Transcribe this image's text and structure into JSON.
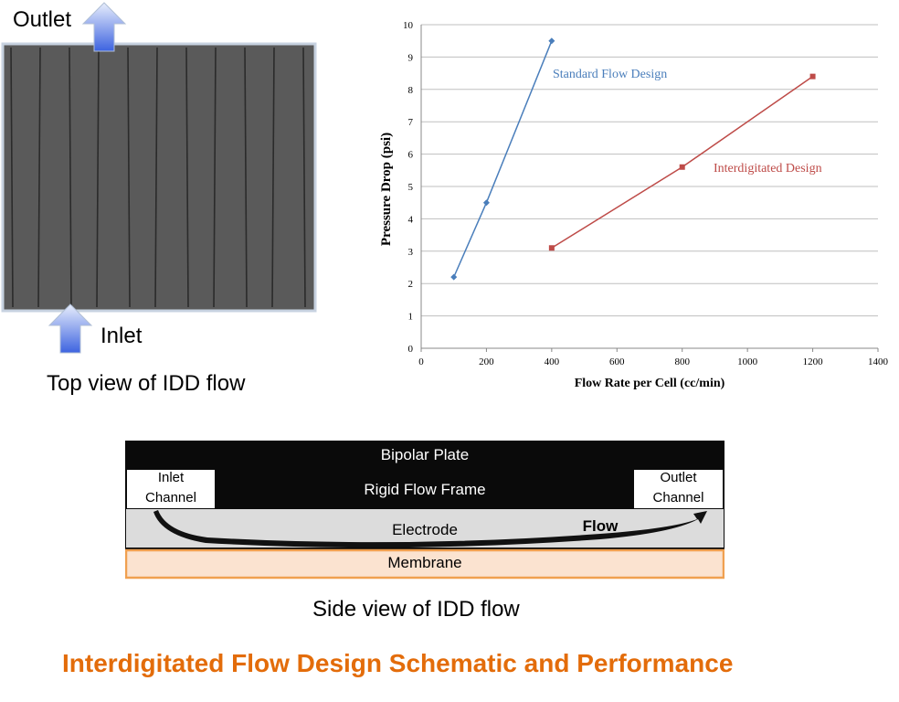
{
  "top_view": {
    "outlet_label": "Outlet",
    "inlet_label": "Inlet",
    "caption": "Top view of IDD flow"
  },
  "side_view": {
    "bipolar_plate": "Bipolar Plate",
    "rigid_flow_frame": "Rigid Flow Frame",
    "inlet_channel_line1": "Inlet",
    "inlet_channel_line2": "Channel",
    "outlet_channel_line1": "Outlet",
    "outlet_channel_line2": "Channel",
    "electrode": "Electrode",
    "flow": "Flow",
    "membrane": "Membrane",
    "caption": "Side view of IDD flow"
  },
  "main_title": "Interdigitated Flow Design Schematic and Performance",
  "colors": {
    "title": "#e36c0a",
    "standard_series": "#4a7ebb",
    "interdigitated_series": "#be4b48",
    "membrane_fill": "#fbe3d0",
    "membrane_border": "#f0a050",
    "electrode_fill": "#dcdcdc",
    "plate_fill": "#0a0a0a",
    "arrow_fill": "#5b7de6"
  },
  "chart_data": {
    "type": "line",
    "xlabel": "Flow Rate per Cell (cc/min)",
    "ylabel": "Pressure Drop (psi)",
    "xlim": [
      0,
      1400
    ],
    "ylim": [
      0,
      10
    ],
    "xticks": [
      0,
      200,
      400,
      600,
      800,
      1000,
      1200,
      1400
    ],
    "yticks": [
      0,
      1,
      2,
      3,
      4,
      5,
      6,
      7,
      8,
      9,
      10
    ],
    "grid": "horizontal",
    "series": [
      {
        "name": "Standard Flow Design",
        "marker": "diamond",
        "x": [
          100,
          200,
          400
        ],
        "y": [
          2.2,
          4.5,
          9.5
        ]
      },
      {
        "name": "Interdigitated Design",
        "marker": "square",
        "x": [
          400,
          800,
          1200
        ],
        "y": [
          3.1,
          5.6,
          8.4
        ]
      }
    ]
  }
}
